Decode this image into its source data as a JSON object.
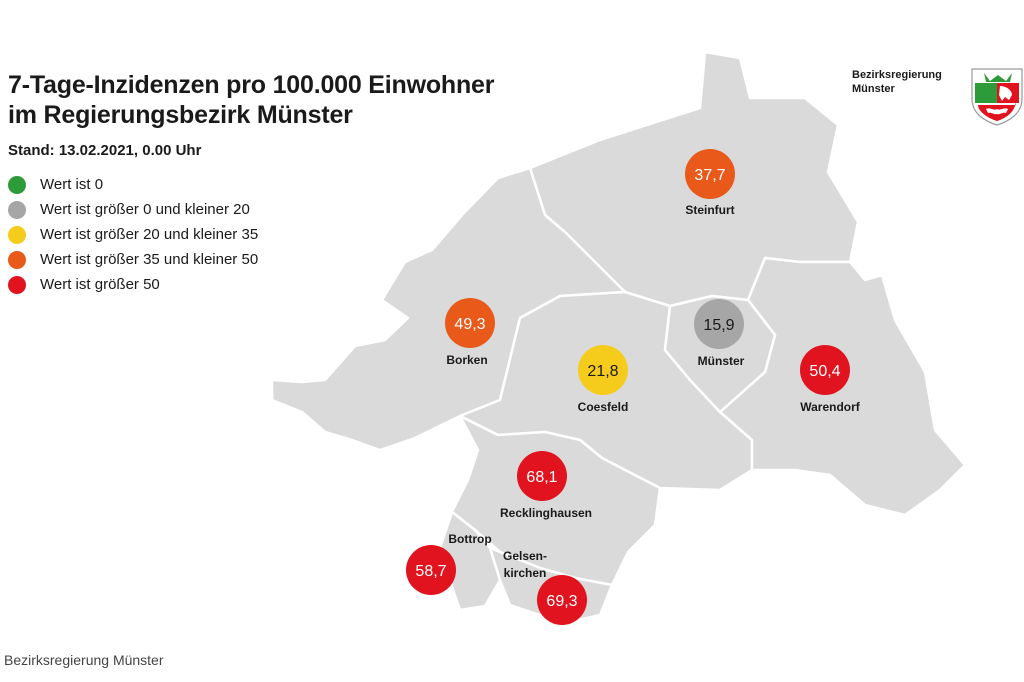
{
  "title_line1": "7-Tage-Inzidenzen pro 100.000 Einwohner",
  "title_line2": "im Regierungsbezirk Münster",
  "stand": "Stand: 13.02.2021, 0.00 Uhr",
  "legend": [
    {
      "label": "Wert ist 0",
      "color": "#2e9b3a"
    },
    {
      "label": "Wert ist größer 0 und kleiner 20",
      "color": "#a6a6a6"
    },
    {
      "label": "Wert ist größer 20 und kleiner 35",
      "color": "#f5cc1c"
    },
    {
      "label": "Wert ist größer 35 und kleiner 50",
      "color": "#e8591a"
    },
    {
      "label": "Wert ist größer 50",
      "color": "#e0131f"
    }
  ],
  "logo": {
    "line1": "Bezirksregierung",
    "line2": "Münster"
  },
  "districts": {
    "steinfurt": {
      "name": "Steinfurt",
      "value": "37,7"
    },
    "borken": {
      "name": "Borken",
      "value": "49,3"
    },
    "muenster": {
      "name": "Münster",
      "value": "15,9"
    },
    "coesfeld": {
      "name": "Coesfeld",
      "value": "21,8"
    },
    "warendorf": {
      "name": "Warendorf",
      "value": "50,4"
    },
    "recklinghausen": {
      "name": "Recklinghausen",
      "value": "68,1"
    },
    "bottrop": {
      "name": "Bottrop",
      "value": "58,7"
    },
    "gelsenkirchen": {
      "name_line1": "Gelsen-",
      "name_line2": "kirchen",
      "value": "69,3"
    }
  },
  "map_colors": {
    "land": "#dadada",
    "border": "#ffffff"
  },
  "credit": "Bezirksregierung Münster"
}
